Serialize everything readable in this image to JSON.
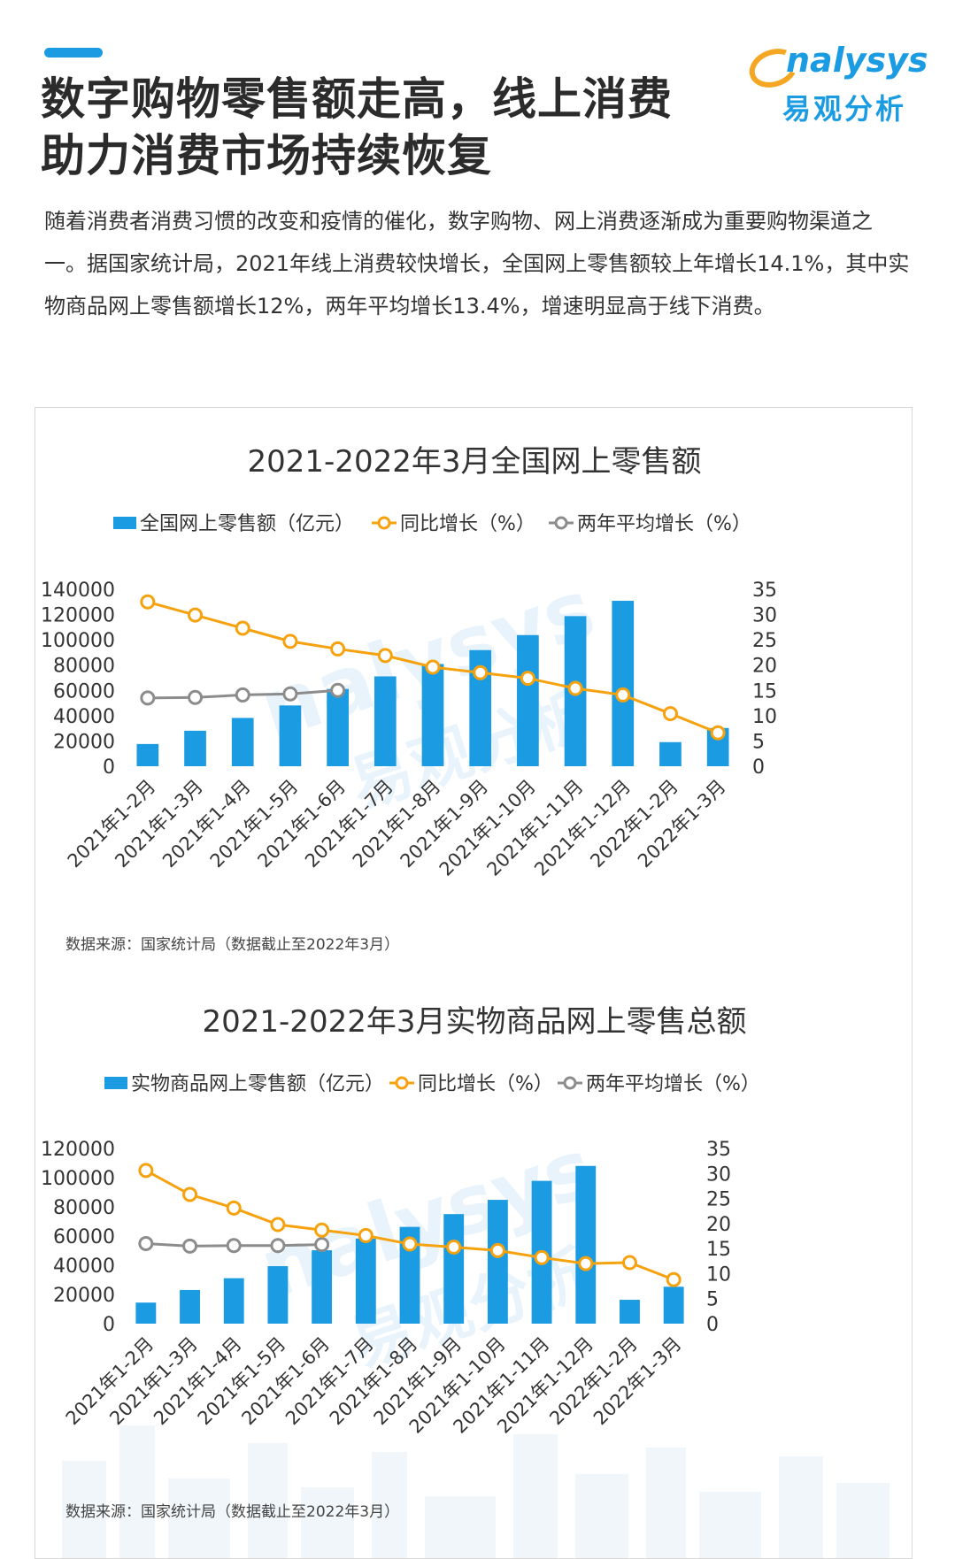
{
  "header": {
    "title_line1": "数字购物零售额走高，线上消费",
    "title_line2": "助力消费市场持续恢复",
    "accent_color": "#1a9be2"
  },
  "logo": {
    "text_en": "nalysys",
    "text_cn": "易观分析",
    "icon": "analysys-o-icon"
  },
  "intro": "随着消费者消费习惯的改变和疫情的催化，数字购物、网上消费逐渐成为重要购物渠道之一。据国家统计局，2021年线上消费较快增长，全国网上零售额较上年增长14.1%，其中实物商品网上零售额增长12%，两年平均增长13.4%，增速明显高于线下消费。",
  "colors": {
    "bar": "#1a9be2",
    "yoy": "#f5a20e",
    "avg": "#8c8c8c"
  },
  "chart_data": [
    {
      "type": "bar",
      "title": "2021-2022年3月全国网上零售额",
      "categories": [
        "2021年1-2月",
        "2021年1-3月",
        "2021年1-4月",
        "2021年1-5月",
        "2021年1-6月",
        "2021年1-7月",
        "2021年1-8月",
        "2021年1-9月",
        "2021年1-10月",
        "2021年1-11月",
        "2021年1-12月",
        "2022年1-2月",
        "2022年1-3月"
      ],
      "series": [
        {
          "name": "全国网上零售额（亿元）",
          "type": "bar",
          "axis": "left",
          "values": [
            17587,
            28093,
            38214,
            48082,
            61133,
            71073,
            80851,
            91871,
            103765,
            118749,
            130884,
            19047,
            30226
          ]
        },
        {
          "name": "同比增长（%）",
          "type": "line",
          "axis": "right",
          "values": [
            32.5,
            29.9,
            27.3,
            24.7,
            23.2,
            21.9,
            19.6,
            18.5,
            17.4,
            15.4,
            14.1,
            10.4,
            6.6
          ]
        },
        {
          "name": "两年平均增长（%）",
          "type": "line",
          "axis": "right",
          "values": [
            13.5,
            13.6,
            14.1,
            14.3,
            15.0,
            null,
            null,
            null,
            null,
            null,
            null,
            null,
            null
          ]
        }
      ],
      "yticks_left": [
        "140000",
        "120000",
        "100000",
        "80000",
        "60000",
        "40000",
        "20000",
        "0"
      ],
      "yticks_right": [
        "35",
        "30",
        "25",
        "20",
        "15",
        "10",
        "5",
        "0"
      ],
      "ylim_left": [
        0,
        140000
      ],
      "ylim_right": [
        0,
        35
      ],
      "legend_position": "top",
      "source": "数据来源：国家统计局（数据截止至2022年3月）"
    },
    {
      "type": "bar",
      "title": "2021-2022年3月实物商品网上零售总额",
      "categories": [
        "2021年1-2月",
        "2021年1-3月",
        "2021年1-4月",
        "2021年1-5月",
        "2021年1-6月",
        "2021年1-7月",
        "2021年1-8月",
        "2021年1-9月",
        "2021年1-10月",
        "2021年1-11月",
        "2021年1-12月",
        "2022年1-2月",
        "2022年1-3月"
      ],
      "series": [
        {
          "name": "实物商品网上零售额（亿元）",
          "type": "bar",
          "axis": "left",
          "values": [
            14421,
            23067,
            31133,
            39373,
            50263,
            58280,
            66286,
            75042,
            84798,
            97810,
            108042,
            16358,
            25279
          ]
        },
        {
          "name": "同比增长（%）",
          "type": "line",
          "axis": "right",
          "values": [
            30.6,
            25.8,
            23.1,
            19.8,
            18.7,
            17.6,
            15.9,
            15.3,
            14.6,
            13.2,
            12.0,
            12.2,
            8.8
          ]
        },
        {
          "name": "两年平均增长（%）",
          "type": "line",
          "axis": "right",
          "values": [
            16.0,
            15.5,
            15.6,
            15.6,
            15.8,
            null,
            null,
            null,
            null,
            null,
            null,
            null,
            null
          ]
        }
      ],
      "yticks_left": [
        "120000",
        "100000",
        "80000",
        "60000",
        "40000",
        "20000",
        "0"
      ],
      "yticks_right": [
        "35",
        "30",
        "25",
        "20",
        "15",
        "10",
        "5",
        "0"
      ],
      "ylim_left": [
        0,
        120000
      ],
      "ylim_right": [
        0,
        35
      ],
      "legend_position": "top",
      "source": "数据来源：国家统计局（数据截止至2022年3月）"
    }
  ]
}
